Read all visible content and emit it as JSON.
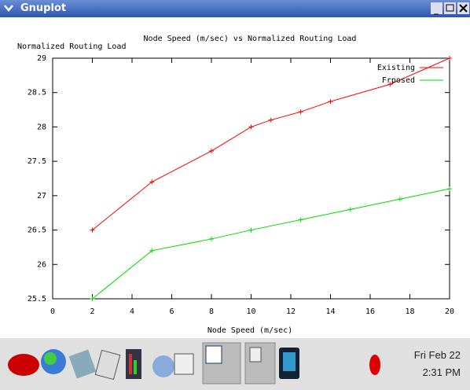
{
  "window": {
    "title": "Gnuplot"
  },
  "chart_data": {
    "type": "line",
    "title": "Node Speed (m/sec) vs Normalized Routing Load",
    "y_label": "Normalized Routing Load",
    "x_label": "Node Speed (m/sec)",
    "xlim": [
      0,
      20
    ],
    "xticks": [
      0,
      2,
      4,
      6,
      8,
      10,
      12,
      14,
      16,
      18,
      20
    ],
    "ylim": [
      25.5,
      29
    ],
    "yticks": [
      25.5,
      26,
      26.5,
      27,
      27.5,
      28,
      28.5,
      29
    ],
    "legend": "top-right",
    "series": [
      {
        "name": "Existing",
        "color": "#ff0000",
        "x": [
          2,
          5,
          8,
          10,
          11,
          12.5,
          14,
          17,
          20
        ],
        "values": [
          26.5,
          27.2,
          27.65,
          28.0,
          28.1,
          28.22,
          28.37,
          28.62,
          29
        ]
      },
      {
        "name": "Frposed",
        "color": "#00dd00",
        "x": [
          2,
          5,
          8,
          10,
          12.5,
          15,
          17.5,
          20
        ],
        "values": [
          25.5,
          26.2,
          26.37,
          26.5,
          26.65,
          26.8,
          26.95,
          27.1
        ]
      }
    ]
  },
  "taskbar": {
    "date": "Fri Feb 22",
    "time": "2:31 PM"
  }
}
